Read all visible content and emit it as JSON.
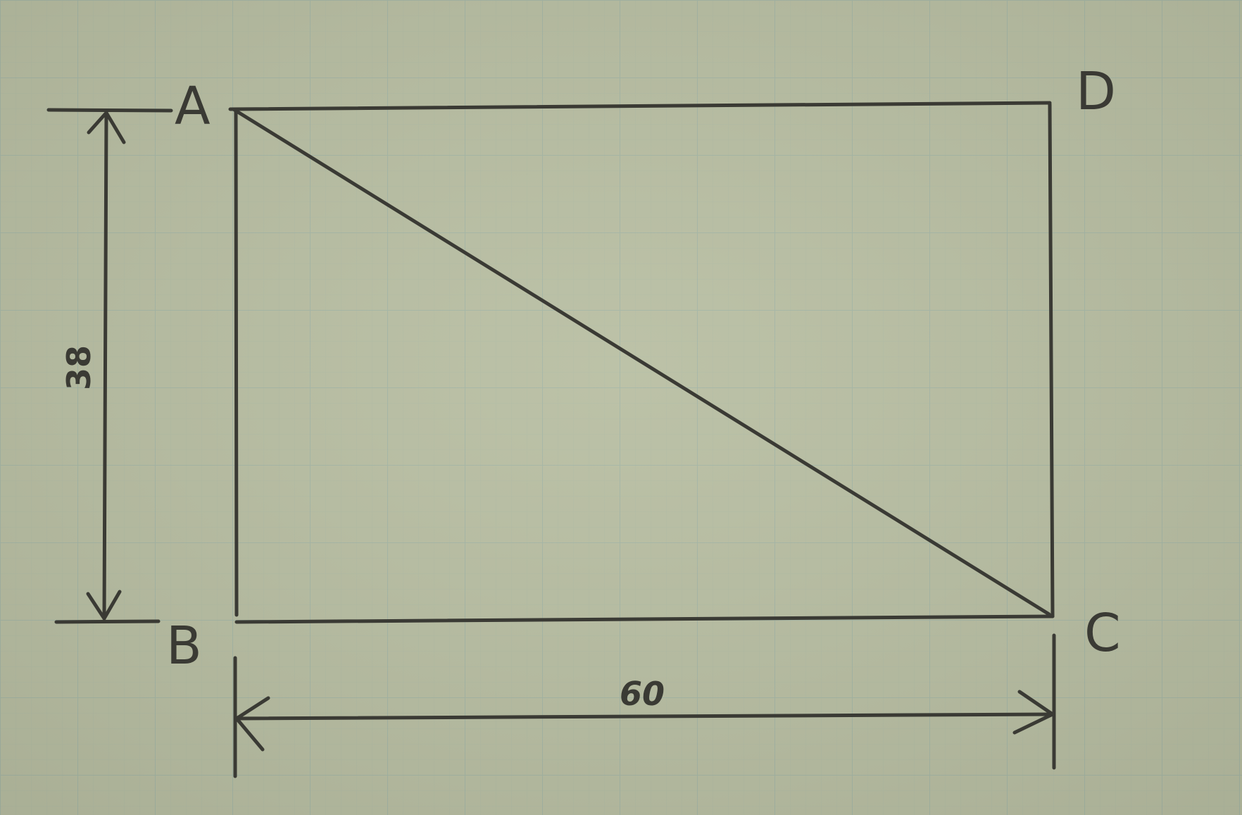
{
  "diagram": {
    "vertices": {
      "A": "A",
      "B": "B",
      "C": "C",
      "D": "D"
    },
    "dimensions": {
      "height": "38",
      "width": "60"
    },
    "colors": {
      "paper": "#b8bea2",
      "grid_minor": "#a9b7a4",
      "grid_major": "#9fb3a6",
      "ink": "#3a3a34"
    }
  }
}
